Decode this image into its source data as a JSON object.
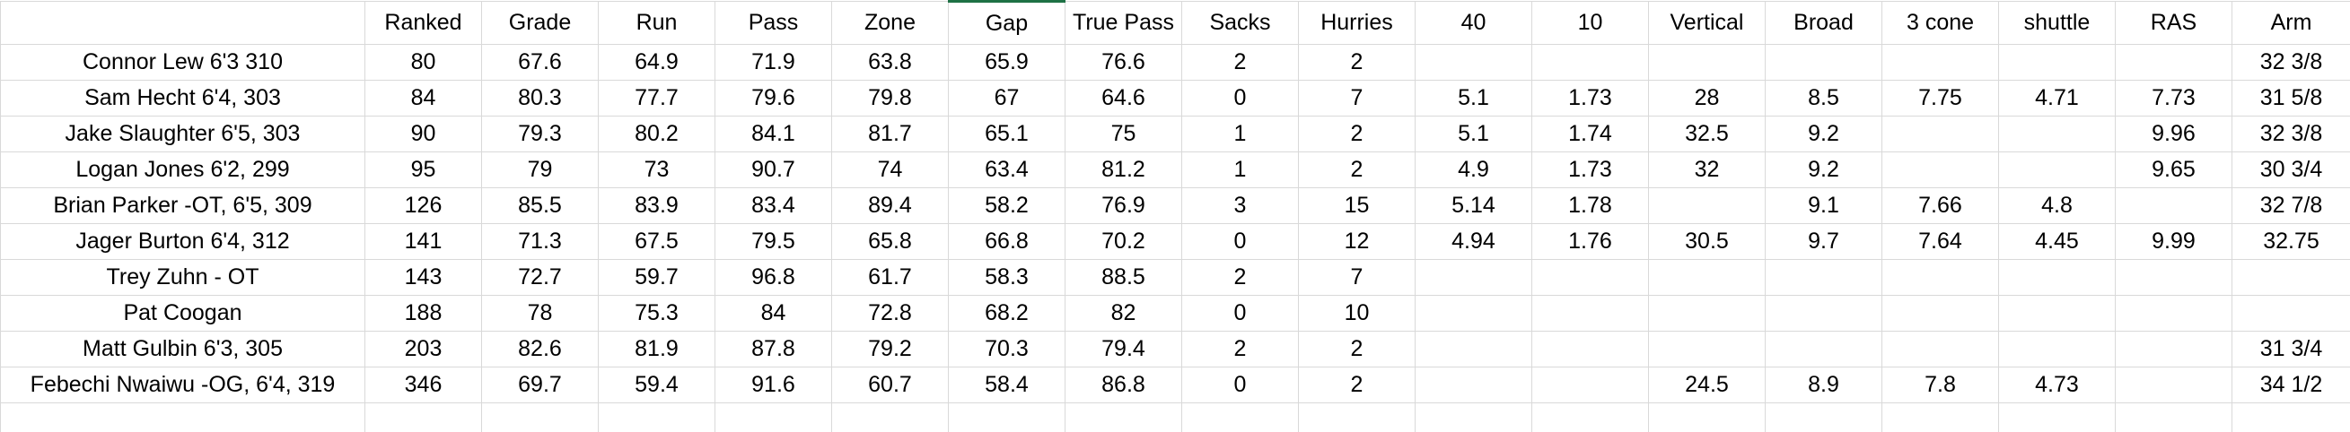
{
  "table": {
    "header": [
      null,
      "Ranked",
      "Grade",
      "Run",
      "Pass",
      "Zone",
      "Gap",
      "True Pass",
      "Sacks",
      "Hurries",
      "40",
      "10",
      "Vertical",
      "Broad",
      "3 cone",
      "shuttle",
      "RAS",
      "Arm"
    ],
    "rows": [
      [
        "Connor Lew 6'3 310",
        80,
        67.6,
        64.9,
        71.9,
        63.8,
        65.9,
        76.6,
        2,
        2,
        null,
        null,
        null,
        null,
        null,
        null,
        null,
        "32 3/8"
      ],
      [
        "Sam Hecht 6'4, 303",
        84,
        80.3,
        77.7,
        79.6,
        79.8,
        67,
        64.6,
        0,
        7,
        5.1,
        1.73,
        28,
        8.5,
        7.75,
        4.71,
        7.73,
        "31 5/8"
      ],
      [
        "Jake Slaughter 6'5, 303",
        90,
        79.3,
        80.2,
        84.1,
        81.7,
        65.1,
        75,
        1,
        2,
        5.1,
        1.74,
        32.5,
        9.2,
        null,
        null,
        9.96,
        "32 3/8"
      ],
      [
        "Logan Jones 6'2, 299",
        95,
        79,
        73,
        90.7,
        74,
        63.4,
        81.2,
        1,
        2,
        4.9,
        1.73,
        32,
        9.2,
        null,
        null,
        9.65,
        "30 3/4"
      ],
      [
        "Brian Parker -OT, 6'5, 309",
        126,
        85.5,
        83.9,
        83.4,
        89.4,
        58.2,
        76.9,
        3,
        15,
        5.14,
        1.78,
        null,
        9.1,
        7.66,
        4.8,
        null,
        "32 7/8"
      ],
      [
        "Jager Burton 6'4, 312",
        141,
        71.3,
        67.5,
        79.5,
        65.8,
        66.8,
        70.2,
        0,
        12,
        4.94,
        1.76,
        30.5,
        9.7,
        7.64,
        4.45,
        9.99,
        32.75
      ],
      [
        "Trey Zuhn - OT",
        143,
        72.7,
        59.7,
        96.8,
        61.7,
        58.3,
        88.5,
        2,
        7,
        null,
        null,
        null,
        null,
        null,
        null,
        null,
        null
      ],
      [
        "Pat Coogan",
        188,
        78,
        75.3,
        84,
        72.8,
        68.2,
        82,
        0,
        10,
        null,
        null,
        null,
        null,
        null,
        null,
        null,
        null
      ],
      [
        "Matt Gulbin 6'3, 305",
        203,
        82.6,
        81.9,
        87.8,
        79.2,
        70.3,
        79.4,
        2,
        2,
        null,
        null,
        null,
        null,
        null,
        null,
        null,
        "31 3/4"
      ],
      [
        "Febechi Nwaiwu -OG, 6'4, 319",
        346,
        69.7,
        59.4,
        91.6,
        60.7,
        58.4,
        86.8,
        0,
        2,
        null,
        null,
        24.5,
        8.9,
        7.8,
        4.73,
        null,
        "34 1/2"
      ]
    ]
  }
}
